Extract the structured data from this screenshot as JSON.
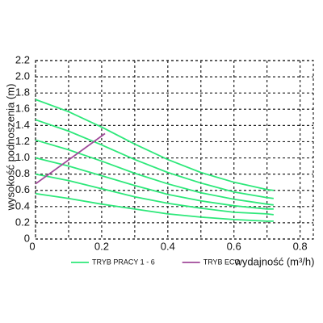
{
  "chart_data": {
    "type": "line",
    "ylabel": "wysokość podnoszenia (m)",
    "xlabel": "wydajność (m³/h)",
    "xlim": [
      0,
      0.84
    ],
    "ylim": [
      0,
      2.2
    ],
    "xticks": [
      0,
      0.2,
      0.4,
      0.6,
      0.8
    ],
    "xminorticks": [
      0.1,
      0.3,
      0.5,
      0.7
    ],
    "yticks": [
      0,
      0.2,
      0.4,
      0.6,
      0.8,
      {
        "value": 1.0,
        "label": "1.0"
      },
      1.2,
      1.4,
      1.6,
      1.8,
      {
        "value": 2.0,
        "label": "2.0"
      },
      2.2
    ],
    "grid": true,
    "series": [
      {
        "name": "TRYB PRACY 1 - 6",
        "color": "#2ee87a",
        "x": [
          0,
          0.1,
          0.2,
          0.3,
          0.4,
          0.5,
          0.6,
          0.7,
          0.72
        ],
        "values": [
          1.72,
          1.57,
          1.38,
          1.17,
          0.98,
          0.82,
          0.7,
          0.61,
          0.6
        ]
      },
      {
        "color": "#2ee87a",
        "x": [
          0,
          0.1,
          0.2,
          0.3,
          0.4,
          0.5,
          0.6,
          0.7,
          0.72
        ],
        "values": [
          1.47,
          1.33,
          1.16,
          0.98,
          0.82,
          0.69,
          0.58,
          0.51,
          0.5
        ]
      },
      {
        "color": "#2ee87a",
        "x": [
          0,
          0.1,
          0.2,
          0.3,
          0.4,
          0.5,
          0.6,
          0.7,
          0.72
        ],
        "values": [
          1.22,
          1.1,
          0.96,
          0.81,
          0.68,
          0.57,
          0.49,
          0.43,
          0.42
        ]
      },
      {
        "color": "#2ee87a",
        "x": [
          0,
          0.1,
          0.2,
          0.3,
          0.4,
          0.5,
          0.6,
          0.7,
          0.72
        ],
        "values": [
          1.0,
          0.9,
          0.78,
          0.66,
          0.55,
          0.47,
          0.41,
          0.37,
          0.37
        ]
      },
      {
        "color": "#2ee87a",
        "x": [
          0,
          0.1,
          0.2,
          0.3,
          0.4,
          0.5,
          0.6,
          0.7,
          0.72
        ],
        "values": [
          0.8,
          0.72,
          0.62,
          0.52,
          0.44,
          0.38,
          0.33,
          0.31,
          0.3
        ]
      },
      {
        "color": "#2ee87a",
        "x": [
          0,
          0.1,
          0.2,
          0.3,
          0.4,
          0.5,
          0.6,
          0.7,
          0.72
        ],
        "values": [
          0.56,
          0.5,
          0.43,
          0.37,
          0.31,
          0.27,
          0.24,
          0.22,
          0.22
        ]
      },
      {
        "name": "TRYB ECO",
        "color": "#a04a9a",
        "x": [
          0,
          0.21
        ],
        "values": [
          0.68,
          1.3
        ]
      }
    ]
  }
}
